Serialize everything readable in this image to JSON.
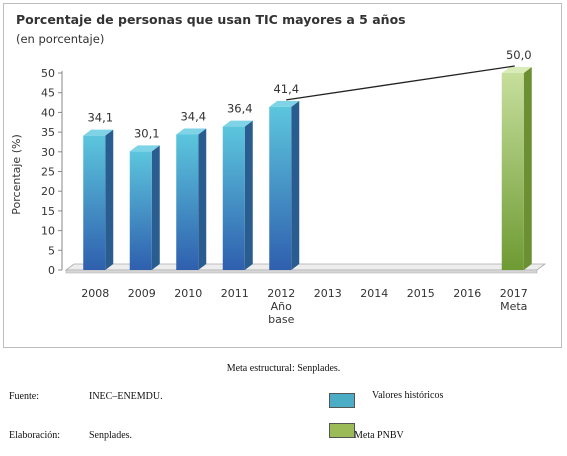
{
  "chart_data": {
    "type": "bar",
    "title": "Porcentaje de personas que usan TIC mayores a 5 años",
    "subtitle": "(en porcentaje)",
    "ylabel": "Porcentaje (%)",
    "xlabel": "",
    "ylim": [
      0,
      50
    ],
    "yticks": [
      0,
      5,
      10,
      15,
      20,
      25,
      30,
      35,
      40,
      45,
      50
    ],
    "categories": [
      "2008",
      "2009",
      "2010",
      "2011",
      "2012",
      "2013",
      "2014",
      "2015",
      "2016",
      "2017"
    ],
    "category_sublabels": {
      "2012": [
        "Año",
        "base"
      ],
      "2017": [
        "Meta"
      ]
    },
    "series": [
      {
        "name": "Valores históricos",
        "color": "#4bacc6",
        "values": [
          34.1,
          30.1,
          34.4,
          36.4,
          41.4,
          null,
          null,
          null,
          null,
          null
        ]
      },
      {
        "name": "Meta PNBV",
        "color": "#9bbb59",
        "values": [
          null,
          null,
          null,
          null,
          null,
          null,
          null,
          null,
          null,
          50.0
        ]
      }
    ],
    "data_labels": [
      "34,1",
      "30,1",
      "34,4",
      "36,4",
      "41,4",
      "",
      "",
      "",
      "",
      "50,0"
    ],
    "trend_line": {
      "from": "2012",
      "to": "2017"
    },
    "grid": false,
    "three_d": true
  },
  "footer": {
    "meta_text": "Meta estructural: Senplades.",
    "source_label": "Fuente:",
    "source_value": "INEC–ENEMDU.",
    "elab_label": "Elaboración:",
    "elab_value": "Senplades.",
    "legend_hist": "Valores históricos",
    "legend_meta": "Meta PNBV"
  }
}
